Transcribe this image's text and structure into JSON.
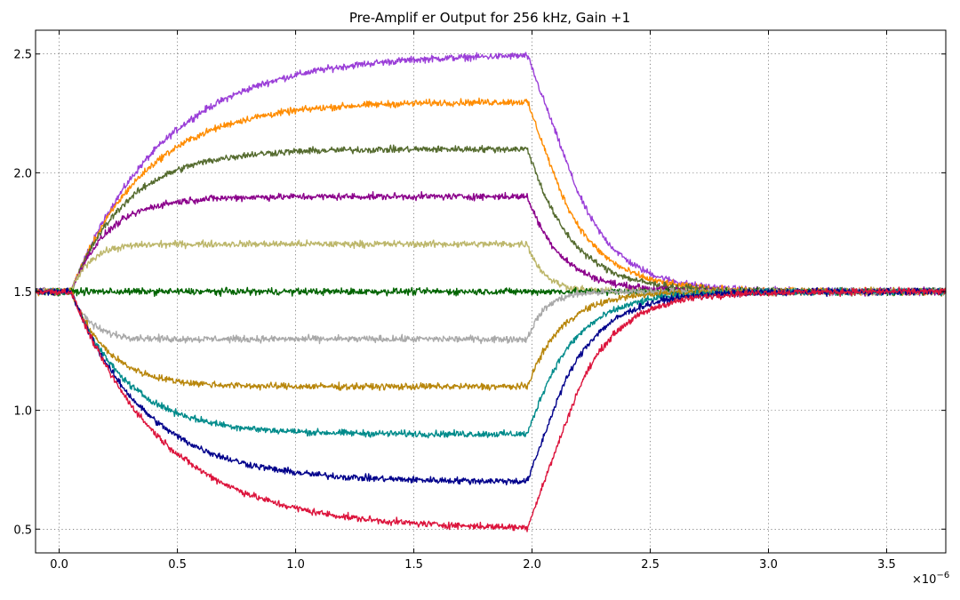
{
  "chart_data": {
    "type": "line",
    "title": "Pre-Amplif er Output for 256 kHz, Gain +1",
    "xlabel": "",
    "ylabel": "",
    "x_multiplier_label": "×10",
    "x_multiplier_exponent": "−6",
    "xlim": [
      -0.1,
      3.75
    ],
    "ylim": [
      0.4,
      2.6
    ],
    "x_ticks": [
      0.0,
      0.5,
      1.0,
      1.5,
      2.0,
      2.5,
      3.0,
      3.5
    ],
    "x_tick_labels": [
      "0.0",
      "0.5",
      "1.0",
      "1.5",
      "2.0",
      "2.5",
      "3.0",
      "3.5"
    ],
    "y_ticks": [
      0.5,
      1.0,
      1.5,
      2.0,
      2.5
    ],
    "y_tick_labels": [
      "0.5",
      "1.0",
      "1.5",
      "2.0",
      "2.5"
    ],
    "grid": true,
    "baseline": 1.5,
    "step_on_time": 0.05,
    "step_off_time": 1.98,
    "series": [
      {
        "color": "#9b3fd8",
        "plateau": 2.5
      },
      {
        "color": "#ff8c00",
        "plateau": 2.3
      },
      {
        "color": "#556b2f",
        "plateau": 2.1
      },
      {
        "color": "#8b008b",
        "plateau": 1.9
      },
      {
        "color": "#bdb76b",
        "plateau": 1.7
      },
      {
        "color": "#006400",
        "plateau": 1.5
      },
      {
        "color": "#a9a9a9",
        "plateau": 1.3
      },
      {
        "color": "#b8860b",
        "plateau": 1.1
      },
      {
        "color": "#008b8b",
        "plateau": 0.9
      },
      {
        "color": "#00008b",
        "plateau": 0.7
      },
      {
        "color": "#dc143c",
        "plateau": 0.5
      }
    ]
  }
}
